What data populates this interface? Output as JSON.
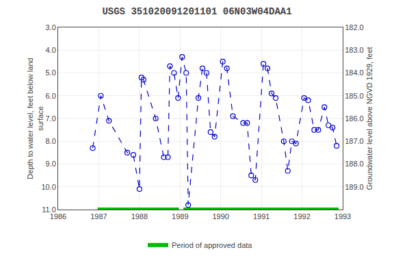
{
  "chart_data": {
    "type": "line",
    "title": "USGS 351020091201101 06N03W04DAA1",
    "y_label": "Depth to water level, feet below land\nsurface",
    "y2_label": "Groundwater level above NGVD 1929, feet",
    "x": [
      1986.85,
      1987.05,
      1987.25,
      1987.7,
      1987.85,
      1988.0,
      1988.05,
      1988.1,
      1988.4,
      1988.6,
      1988.7,
      1988.75,
      1988.85,
      1988.95,
      1989.05,
      1989.15,
      1989.2,
      1989.45,
      1989.55,
      1989.65,
      1989.75,
      1989.85,
      1990.05,
      1990.15,
      1990.3,
      1990.55,
      1990.65,
      1990.75,
      1990.85,
      1991.05,
      1991.15,
      1991.25,
      1991.35,
      1991.55,
      1991.65,
      1991.75,
      1991.85,
      1992.05,
      1992.15,
      1992.3,
      1992.4,
      1992.55,
      1992.65,
      1992.75,
      1992.85
    ],
    "series": [
      {
        "color": "#0000cc",
        "line_style": "dashed",
        "marker": "circle-open",
        "values": [
          8.3,
          6.0,
          7.1,
          8.5,
          8.6,
          10.1,
          5.2,
          5.3,
          7.0,
          8.7,
          8.7,
          4.7,
          5.0,
          6.1,
          4.3,
          5.0,
          10.8,
          6.1,
          4.8,
          5.0,
          7.6,
          7.8,
          4.5,
          4.8,
          6.9,
          7.2,
          7.2,
          9.5,
          9.7,
          4.6,
          4.8,
          5.9,
          6.1,
          8.0,
          9.3,
          8.0,
          8.1,
          6.1,
          6.2,
          7.5,
          7.5,
          6.5,
          7.3,
          7.4,
          8.2
        ]
      },
      {
        "name": "Period of approved data",
        "type": "segments",
        "color": "#00bb00",
        "level": 11.0,
        "segments": [
          [
            1986.97,
            1988.97
          ],
          [
            1989.08,
            1992.9
          ]
        ]
      }
    ],
    "xlim": [
      1986,
      1993
    ],
    "xticks": [
      1986,
      1987,
      1988,
      1989,
      1990,
      1991,
      1992,
      1993
    ],
    "ylim": [
      11.0,
      3.0
    ],
    "yticks": [
      {
        "value": 3.0,
        "label": "3.0"
      },
      {
        "value": 4.0,
        "label": "4.0"
      },
      {
        "value": 5.0,
        "label": "5.0"
      },
      {
        "value": 6.0,
        "label": "6.0"
      },
      {
        "value": 7.0,
        "label": "7.0"
      },
      {
        "value": 8.0,
        "label": "8.0"
      },
      {
        "value": 9.0,
        "label": "9.0"
      },
      {
        "value": 10.0,
        "label": "10.0"
      },
      {
        "value": 11.0,
        "label": "11.0"
      }
    ],
    "y2lim": [
      190.0,
      182.0
    ],
    "y2ticks": [
      {
        "value": 182.0,
        "label": "182.0"
      },
      {
        "value": 183.0,
        "label": "183.0"
      },
      {
        "value": 184.0,
        "label": "184.0"
      },
      {
        "value": 185.0,
        "label": "185.0"
      },
      {
        "value": 186.0,
        "label": "186.0"
      },
      {
        "value": 187.0,
        "label": "187.0"
      },
      {
        "value": 188.0,
        "label": "188.0"
      },
      {
        "value": 189.0,
        "label": "189.0"
      }
    ],
    "grid": true,
    "legend": "bottom"
  }
}
